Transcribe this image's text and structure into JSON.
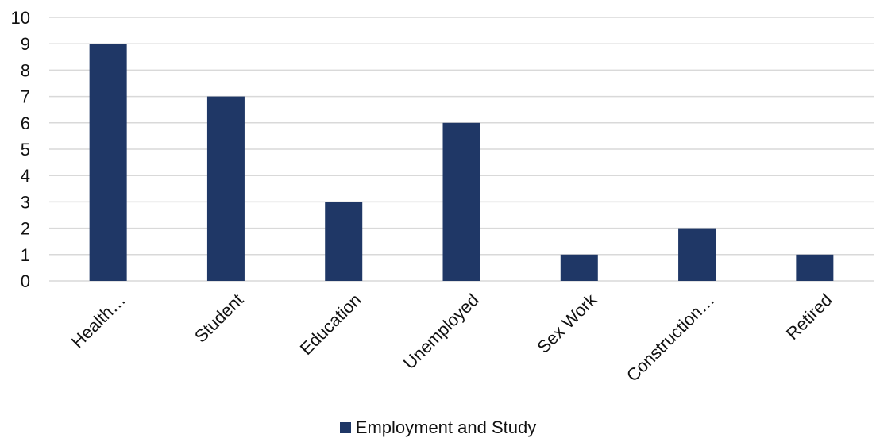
{
  "chart_data": {
    "type": "bar",
    "categories": [
      "Health…",
      "Student",
      "Education",
      "Unemployed",
      "Sex Work",
      "Construction…",
      "Retired"
    ],
    "series": [
      {
        "name": "Employment and Study",
        "values": [
          9,
          7,
          3,
          6,
          1,
          2,
          1
        ]
      }
    ],
    "ylim": [
      0,
      10
    ],
    "yticks": [
      0,
      1,
      2,
      3,
      4,
      5,
      6,
      7,
      8,
      9,
      10
    ],
    "title": "",
    "xlabel": "",
    "ylabel": "",
    "grid": true,
    "legend_position": "bottom",
    "colors": {
      "bar": "#1f3766",
      "grid": "#d9d9d9"
    }
  }
}
